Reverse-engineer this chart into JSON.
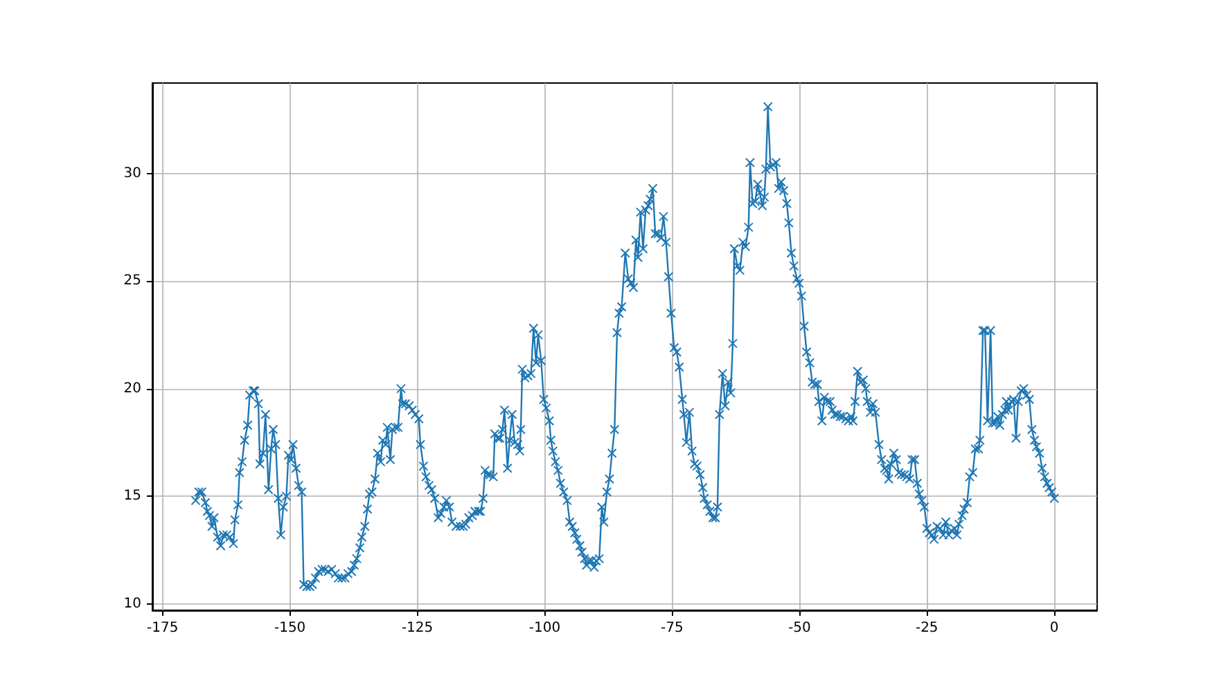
{
  "chart_data": {
    "type": "line",
    "marker": "cross",
    "line_style": "solid",
    "grid": true,
    "xlim": [
      -177,
      8.4
    ],
    "xticks": [
      -175,
      -150,
      -125,
      -100,
      -75,
      -50,
      -25,
      0
    ],
    "ylim": [
      9.7,
      34.2
    ],
    "yticks": [
      10,
      15,
      20,
      25,
      30
    ],
    "series": [
      {
        "color": "#1f77b4",
        "x": [
          -168.5,
          -167.9,
          -167.3,
          -166.6,
          -166.2,
          -165.8,
          -165.3,
          -164.9,
          -164.2,
          -163.6,
          -163.1,
          -162.4,
          -161.8,
          -161.1,
          -160.8,
          -160.2,
          -159.9,
          -159.4,
          -158.9,
          -158.3,
          -157.9,
          -157.2,
          -156.9,
          -156.2,
          -155.9,
          -155.3,
          -154.8,
          -154.2,
          -153.7,
          -153.3,
          -152.8,
          -152.3,
          -151.8,
          -151.3,
          -150.7,
          -150.3,
          -149.8,
          -149.4,
          -148.8,
          -148.3,
          -147.7,
          -147.3,
          -146.7,
          -146.1,
          -145.6,
          -145.0,
          -144.4,
          -143.7,
          -143.1,
          -142.5,
          -141.8,
          -141.1,
          -140.5,
          -139.8,
          -139.2,
          -138.6,
          -137.9,
          -137.4,
          -136.9,
          -136.3,
          -135.9,
          -135.3,
          -134.8,
          -134.4,
          -133.9,
          -133.3,
          -132.8,
          -132.2,
          -131.8,
          -131.2,
          -130.9,
          -130.3,
          -129.9,
          -129.3,
          -128.8,
          -128.2,
          -127.9,
          -127.3,
          -126.6,
          -126.0,
          -125.4,
          -124.7,
          -124.4,
          -123.8,
          -123.3,
          -122.7,
          -122.2,
          -121.6,
          -120.9,
          -120.4,
          -119.8,
          -119.3,
          -118.7,
          -118.2,
          -117.4,
          -116.6,
          -116.0,
          -115.5,
          -114.9,
          -114.2,
          -113.7,
          -113.0,
          -112.6,
          -112.1,
          -111.7,
          -111.2,
          -110.7,
          -110.1,
          -109.8,
          -109.2,
          -108.8,
          -108.3,
          -107.9,
          -107.3,
          -106.9,
          -106.4,
          -105.9,
          -105.3,
          -104.9,
          -104.7,
          -104.4,
          -103.9,
          -103.3,
          -102.7,
          -102.2,
          -101.7,
          -101.3,
          -100.7,
          -100.2,
          -99.7,
          -99.1,
          -98.8,
          -98.4,
          -97.9,
          -97.4,
          -96.9,
          -96.3,
          -95.6,
          -95.1,
          -94.6,
          -94.1,
          -93.7,
          -93.1,
          -92.7,
          -92.2,
          -91.8,
          -91.3,
          -90.8,
          -90.3,
          -89.9,
          -89.3,
          -88.8,
          -88.4,
          -87.8,
          -87.3,
          -86.8,
          -86.3,
          -85.8,
          -85.4,
          -84.9,
          -84.2,
          -83.6,
          -83.1,
          -82.6,
          -82.1,
          -81.7,
          -81.2,
          -80.7,
          -80.2,
          -79.7,
          -79.3,
          -78.8,
          -78.3,
          -77.8,
          -77.2,
          -76.7,
          -76.2,
          -75.7,
          -75.2,
          -74.6,
          -74.1,
          -73.6,
          -73.0,
          -72.7,
          -72.2,
          -71.6,
          -71.1,
          -70.6,
          -70.1,
          -69.5,
          -69.0,
          -68.7,
          -68.1,
          -67.6,
          -67.0,
          -66.5,
          -66.1,
          -65.7,
          -65.1,
          -64.6,
          -64.0,
          -63.5,
          -63.1,
          -62.8,
          -62.2,
          -61.7,
          -61.1,
          -60.6,
          -60.0,
          -59.7,
          -59.2,
          -58.7,
          -58.2,
          -57.8,
          -57.3,
          -56.9,
          -56.6,
          -56.2,
          -55.7,
          -55.2,
          -54.6,
          -54.1,
          -53.6,
          -53.1,
          -52.5,
          -52.1,
          -51.6,
          -51.1,
          -50.5,
          -50.1,
          -49.6,
          -49.1,
          -48.6,
          -48.0,
          -47.5,
          -47.0,
          -46.5,
          -46.2,
          -45.6,
          -45.1,
          -44.6,
          -44.0,
          -43.6,
          -43.1,
          -42.6,
          -42.0,
          -41.5,
          -40.9,
          -40.4,
          -39.9,
          -39.5,
          -39.1,
          -38.6,
          -38.0,
          -37.5,
          -37.0,
          -36.7,
          -36.1,
          -35.6,
          -35.1,
          -34.4,
          -33.9,
          -33.3,
          -32.9,
          -32.5,
          -32.1,
          -31.5,
          -31.0,
          -30.5,
          -30.0,
          -29.4,
          -29.0,
          -28.4,
          -27.9,
          -27.4,
          -26.9,
          -26.5,
          -26.0,
          -25.5,
          -25.0,
          -24.5,
          -24.0,
          -23.6,
          -23.0,
          -22.4,
          -21.8,
          -21.3,
          -20.7,
          -20.2,
          -19.6,
          -19.1,
          -18.7,
          -18.1,
          -17.7,
          -17.1,
          -16.6,
          -16.0,
          -15.5,
          -14.9,
          -14.6,
          -14.0,
          -13.6,
          -13.1,
          -12.5,
          -12.1,
          -11.6,
          -11.1,
          -10.7,
          -10.2,
          -9.7,
          -9.4,
          -9.0,
          -8.4,
          -8.0,
          -7.5,
          -7.1,
          -6.5,
          -6.0,
          -5.4,
          -4.9,
          -4.4,
          -3.9,
          -3.5,
          -2.9,
          -2.4,
          -1.9,
          -1.4,
          -1.0,
          -0.5,
          0.0
        ],
        "values": [
          14.8,
          15.2,
          15.2,
          14.7,
          14.3,
          14.1,
          13.6,
          14.0,
          13.1,
          12.7,
          13.2,
          13.2,
          13.1,
          12.8,
          13.9,
          14.6,
          16.1,
          16.6,
          17.6,
          18.3,
          19.7,
          19.9,
          19.9,
          19.3,
          16.5,
          17.0,
          18.8,
          15.3,
          17.2,
          18.1,
          17.4,
          14.9,
          13.2,
          14.5,
          15.0,
          16.9,
          16.7,
          17.4,
          16.3,
          15.5,
          15.2,
          10.9,
          10.8,
          10.8,
          10.9,
          11.2,
          11.5,
          11.6,
          11.6,
          11.5,
          11.6,
          11.4,
          11.2,
          11.2,
          11.2,
          11.4,
          11.5,
          11.8,
          12.1,
          12.6,
          13.1,
          13.6,
          14.4,
          15.1,
          15.2,
          15.8,
          17.0,
          16.6,
          17.6,
          17.4,
          18.2,
          16.7,
          18.1,
          18.2,
          18.2,
          20.0,
          19.3,
          19.3,
          19.2,
          19.0,
          18.8,
          18.6,
          17.4,
          16.4,
          15.9,
          15.5,
          15.3,
          14.9,
          14.0,
          14.2,
          14.5,
          14.8,
          14.5,
          13.8,
          13.6,
          13.6,
          13.6,
          13.7,
          14.0,
          14.1,
          14.3,
          14.3,
          14.3,
          14.9,
          16.2,
          16.0,
          16.0,
          15.9,
          17.9,
          17.7,
          17.7,
          18.1,
          19.0,
          16.3,
          17.6,
          18.8,
          17.5,
          17.4,
          17.1,
          18.1,
          20.9,
          20.5,
          20.6,
          20.7,
          22.8,
          21.2,
          22.5,
          21.3,
          19.5,
          19.1,
          18.5,
          17.6,
          17.1,
          16.6,
          16.2,
          15.6,
          15.2,
          14.8,
          13.8,
          13.6,
          13.3,
          13.0,
          12.7,
          12.4,
          12.1,
          11.8,
          12.0,
          12.0,
          11.7,
          12.0,
          12.1,
          14.5,
          13.8,
          15.2,
          15.8,
          17.0,
          18.1,
          22.6,
          23.5,
          23.8,
          26.3,
          25.1,
          24.9,
          24.7,
          26.9,
          26.1,
          28.2,
          26.5,
          28.3,
          28.5,
          28.8,
          29.3,
          27.2,
          27.2,
          27.0,
          28.0,
          26.8,
          25.2,
          23.5,
          21.9,
          21.7,
          21.0,
          19.5,
          18.8,
          17.5,
          18.9,
          17.1,
          16.5,
          16.4,
          16.0,
          15.4,
          14.9,
          14.6,
          14.3,
          14.0,
          14.0,
          14.5,
          18.8,
          20.7,
          19.2,
          20.3,
          19.8,
          22.1,
          26.5,
          25.7,
          25.5,
          26.8,
          26.6,
          27.5,
          30.5,
          28.6,
          28.7,
          29.5,
          29.1,
          28.5,
          28.9,
          30.2,
          33.1,
          30.3,
          30.4,
          30.5,
          29.3,
          29.6,
          29.2,
          28.6,
          27.7,
          26.3,
          25.7,
          25.1,
          24.9,
          24.3,
          22.9,
          21.7,
          21.2,
          20.3,
          20.2,
          20.2,
          19.4,
          18.5,
          19.6,
          19.4,
          19.4,
          19.0,
          18.8,
          18.8,
          18.7,
          18.7,
          18.6,
          18.5,
          18.7,
          18.5,
          19.4,
          20.8,
          20.3,
          20.4,
          20.0,
          19.4,
          18.9,
          19.3,
          18.9,
          17.4,
          16.7,
          16.3,
          16.2,
          15.8,
          16.5,
          17.0,
          16.7,
          16.1,
          16.0,
          16.0,
          15.9,
          15.8,
          16.7,
          16.7,
          15.6,
          15.1,
          14.8,
          14.5,
          13.5,
          13.3,
          13.2,
          13.0,
          13.6,
          13.5,
          13.2,
          13.8,
          13.2,
          13.4,
          13.5,
          13.2,
          13.7,
          14.1,
          14.4,
          14.7,
          15.9,
          16.1,
          17.2,
          17.2,
          17.6,
          22.7,
          22.7,
          18.5,
          22.7,
          18.4,
          18.4,
          18.7,
          18.3,
          18.8,
          19.0,
          19.4,
          19.0,
          19.4,
          19.5,
          17.7,
          19.4,
          19.9,
          20.0,
          19.7,
          19.5,
          18.1,
          17.6,
          17.3,
          17.0,
          16.3,
          15.9,
          15.6,
          15.4,
          15.2,
          14.9
        ]
      }
    ]
  }
}
